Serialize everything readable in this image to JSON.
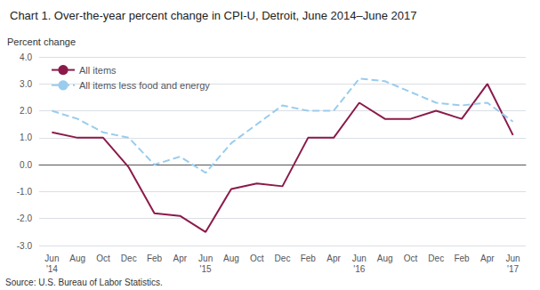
{
  "chart_data": {
    "type": "line",
    "title": "Chart 1. Over-the-year percent change in CPI-U, Detroit, June 2014–June 2017",
    "ylabel": "Percent change",
    "source": "Source: U.S. Bureau of Labor Statistics.",
    "categories": [
      "Jun\n'14",
      "Aug",
      "Oct",
      "Dec",
      "Feb",
      "Apr",
      "Jun\n'15",
      "Aug",
      "Oct",
      "Dec",
      "Feb",
      "Apr",
      "Jun\n'16",
      "Aug",
      "Oct",
      "Dec",
      "Feb",
      "Apr",
      "Jun\n'17"
    ],
    "series": [
      {
        "name": "All items",
        "color": "#8B1A4A",
        "line_style": "solid",
        "values": [
          1.2,
          1.0,
          1.0,
          -0.1,
          -1.8,
          -1.9,
          -2.5,
          -0.9,
          -0.7,
          -0.8,
          1.0,
          1.0,
          2.3,
          1.7,
          1.7,
          2.0,
          1.7,
          3.0,
          1.1
        ]
      },
      {
        "name": "All items less food and energy",
        "color": "#99CCEE",
        "line_style": "dashed",
        "values": [
          2.0,
          1.7,
          1.2,
          1.0,
          0.0,
          0.3,
          -0.3,
          0.8,
          1.5,
          2.2,
          2.0,
          2.0,
          3.2,
          3.1,
          2.7,
          2.3,
          2.2,
          2.3,
          1.6
        ]
      }
    ],
    "ylim": [
      -3.0,
      4.0
    ],
    "yticks": [
      {
        "value": -3.0,
        "label": "-3.0"
      },
      {
        "value": -2.0,
        "label": "-2.0"
      },
      {
        "value": -1.0,
        "label": "-1.0"
      },
      {
        "value": 0.0,
        "label": "0.0"
      },
      {
        "value": 1.0,
        "label": "1.0"
      },
      {
        "value": 2.0,
        "label": "2.0"
      },
      {
        "value": 3.0,
        "label": "3.0"
      },
      {
        "value": 4.0,
        "label": "4.0"
      }
    ],
    "grid": true,
    "legend": "upper left"
  }
}
